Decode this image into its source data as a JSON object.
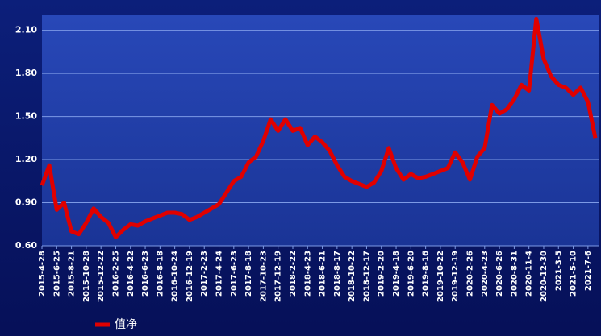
{
  "chart_data": {
    "type": "line",
    "categories": [
      "2015-4-28",
      null,
      "2015-6-25",
      null,
      "2015-8-21",
      null,
      "2015-10-28",
      null,
      "2015-12-22",
      null,
      "2016-2-25",
      null,
      "2016-4-22",
      null,
      "2016-6-23",
      null,
      "2016-8-18",
      null,
      "2016-10-24",
      null,
      "2016-12-19",
      null,
      "2017-2-23",
      null,
      "2017-4-24",
      null,
      "2017-6-23",
      null,
      "2017-8-18",
      null,
      "2017-10-23",
      null,
      "2017-12-19",
      null,
      "2018-2-22",
      null,
      "2018-4-23",
      null,
      "2018-6-21",
      null,
      "2018-8-17",
      null,
      "2018-10-22",
      null,
      "2018-12-17",
      null,
      "2019-2-20",
      null,
      "2019-4-18",
      null,
      "2019-6-20",
      null,
      "2019-8-16",
      null,
      "2019-10-22",
      null,
      "2019-12-19",
      null,
      "2020-2-26",
      null,
      "2020-4-23",
      null,
      "2020-6-26",
      null,
      "2020-8-31",
      null,
      "2020-11-4",
      null,
      "2020-12-30",
      null,
      "2021-3-5",
      null,
      "2021-5-10",
      null,
      "2021-7-6",
      null
    ],
    "series": [
      {
        "name": "值净",
        "color": "#e00000",
        "values": [
          1.02,
          1.16,
          0.85,
          0.9,
          0.7,
          0.68,
          0.76,
          0.86,
          0.8,
          0.76,
          0.66,
          0.71,
          0.75,
          0.74,
          0.77,
          0.79,
          0.81,
          0.83,
          0.83,
          0.82,
          0.78,
          0.8,
          0.83,
          0.86,
          0.89,
          0.97,
          1.05,
          1.08,
          1.18,
          1.22,
          1.33,
          1.48,
          1.4,
          1.48,
          1.4,
          1.42,
          1.3,
          1.36,
          1.32,
          1.26,
          1.16,
          1.08,
          1.05,
          1.03,
          1.01,
          1.04,
          1.12,
          1.28,
          1.14,
          1.06,
          1.1,
          1.07,
          1.08,
          1.1,
          1.12,
          1.14,
          1.25,
          1.18,
          1.06,
          1.22,
          1.28,
          1.58,
          1.52,
          1.55,
          1.62,
          1.72,
          1.68,
          2.18,
          1.9,
          1.78,
          1.72,
          1.7,
          1.65,
          1.7,
          1.6,
          1.35
        ]
      }
    ],
    "ylim": [
      0.6,
      2.21
    ],
    "yticks": [
      {
        "value": 0.6,
        "label": "0.60"
      },
      {
        "value": 0.9,
        "label": "0.90"
      },
      {
        "value": 1.2,
        "label": "1.20"
      },
      {
        "value": 1.5,
        "label": "1.50"
      },
      {
        "value": 1.8,
        "label": "1.80"
      },
      {
        "value": 2.1,
        "label": "2.10"
      }
    ],
    "grid": true,
    "legend": "bottom-left"
  }
}
